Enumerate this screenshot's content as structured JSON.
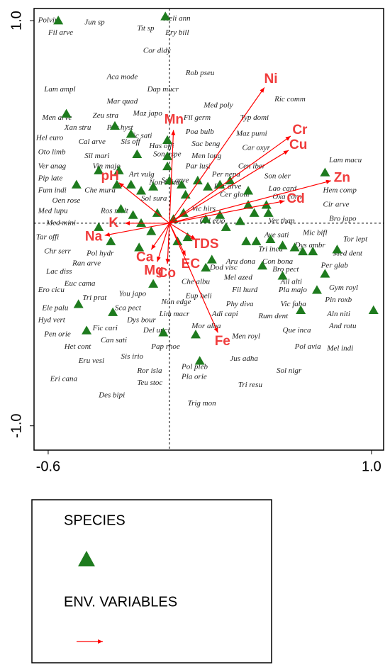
{
  "chart_data": {
    "type": "scatter",
    "xlim": [
      -0.67,
      1.06
    ],
    "ylim": [
      -1.12,
      1.06
    ],
    "xticks": [
      {
        "value": -0.6,
        "label": "-0.6"
      },
      {
        "value": 1.0,
        "label": "1.0"
      }
    ],
    "yticks": [
      {
        "value": -1.0,
        "label": "-1.0"
      },
      {
        "value": 1.0,
        "label": "1.0"
      }
    ],
    "zero_lines": true,
    "series": [
      {
        "name": "SPECIES",
        "color": "#1e7b1e",
        "marker": "triangle",
        "x": [
          -0.55,
          -0.02,
          -0.51,
          -0.27,
          -0.19,
          -0.16,
          -0.25,
          -0.01,
          -0.01,
          -0.01,
          -0.35,
          -0.46,
          -0.26,
          -0.19,
          -0.14,
          -0.08,
          0.0,
          0.06,
          0.08,
          0.14,
          0.19,
          0.25,
          0.3,
          0.39,
          0.48,
          0.42,
          0.49,
          0.35,
          0.28,
          0.38,
          0.43,
          0.5,
          0.56,
          0.62,
          0.66,
          0.71,
          0.83,
          0.77,
          0.73,
          0.65,
          1.01,
          -0.41,
          -0.28,
          -0.45,
          -0.35,
          -0.24,
          -0.18,
          -0.14,
          -0.09,
          -0.06,
          0.04,
          0.09,
          0.18,
          0.21,
          0.46,
          0.56,
          0.13,
          0.15,
          -0.03,
          -0.08,
          -0.15,
          0.77,
          0.39,
          0.18,
          0.25,
          -0.29,
          0.02,
          0.07
        ],
        "values": [
          1.0,
          1.02,
          0.54,
          0.48,
          0.44,
          0.34,
          0.26,
          0.41,
          0.33,
          0.28,
          0.26,
          0.19,
          0.19,
          0.19,
          0.16,
          0.18,
          0.21,
          0.19,
          0.14,
          0.21,
          0.18,
          0.19,
          0.21,
          0.16,
          0.09,
          0.05,
          0.05,
          0.01,
          -0.02,
          -0.09,
          -0.09,
          -0.08,
          -0.11,
          -0.12,
          -0.14,
          -0.14,
          -0.13,
          -0.25,
          -0.33,
          -0.43,
          -0.43,
          -0.53,
          -0.44,
          -0.4,
          -0.02,
          0.07,
          0.04,
          0.0,
          -0.04,
          0.05,
          -0.09,
          -0.07,
          -0.22,
          -0.18,
          -0.21,
          -0.26,
          -0.55,
          -0.68,
          -0.54,
          -0.3,
          -0.12,
          0.25,
          0.09,
          0.02,
          0.04,
          -0.09,
          0.02,
          0.05
        ]
      },
      {
        "name": "ENV. VARIABLES",
        "color": "#ff0000",
        "marker": "arrow",
        "labels": [
          "Ni",
          "Cr",
          "Cu",
          "Zn",
          "Cd",
          "Mn",
          "pH",
          "K",
          "Na",
          "Ca",
          "Mg",
          "Co",
          "EC",
          "TDS",
          "Fe"
        ],
        "x": [
          0.47,
          0.6,
          0.59,
          0.8,
          0.57,
          0.02,
          -0.25,
          -0.22,
          -0.32,
          -0.09,
          -0.06,
          -0.01,
          0.08,
          0.13,
          0.24
        ],
        "values": [
          0.67,
          0.43,
          0.36,
          0.21,
          0.11,
          0.46,
          0.2,
          0.0,
          -0.06,
          -0.13,
          -0.19,
          -0.2,
          -0.16,
          -0.08,
          -0.54
        ]
      }
    ],
    "species_labels": {
      "texts": [
        "Polviri",
        "Jun sp",
        "Fil arve",
        "Heli ann",
        "Tit sp",
        "Ery bill",
        "Cor didy",
        "Aca mode",
        "Rob pseu",
        "Lam ampl",
        "Dap mucr",
        "Ric comm",
        "Mar quad",
        "Med poly",
        "Maz japo",
        "Zeu stra",
        "Fil germ",
        "Typ domi",
        "Men arve",
        "Xan stru",
        "Par hyst",
        "Vic sati",
        "Poa bulb",
        "Maz pumi",
        "Hel euro",
        "Cal arve",
        "Sis off",
        "Has offi",
        "Sac beng",
        "Car oxyr",
        "Oto limb",
        "Sil mari",
        "Son aspe",
        "Men long",
        "Cen iber",
        "Ver anag",
        "Vin majo",
        "Par lusi",
        "Lam macu",
        "Pip late",
        "Art vulg",
        "Non cana",
        "Son arve",
        "Per nepa",
        "Son oler",
        "Lao card",
        "Hem comp",
        "Fum indi",
        "Che mura",
        "Ear arve",
        "Oxa corn",
        "Cir arve",
        "Oen rose",
        "Sol sura",
        "Cer glom",
        "Vic hirs",
        "Med lupu",
        "Ros mult",
        "Bro japo",
        "Med mini",
        "Ver thap",
        "Cel erio",
        "Tor lept",
        "Tar offi",
        "Ave sati",
        "Mic bifl",
        "Chr serr",
        "Pol hydr",
        "Tri inca",
        "Dys ambr",
        "Med dent",
        "Ran arve",
        "Aru dona",
        "Con bona",
        "Lac diss",
        "Euc cama",
        "Dod visc",
        "Bro pect",
        "Per glab",
        "Mel azed",
        "Ail alti",
        "Che albu",
        "Ero cicu",
        "You japo",
        "Tri prat",
        "Eup heli",
        "Fil hurd",
        "Pla majo",
        "Gym royl",
        "Pin roxb",
        "Ele palu",
        "Sca pect",
        "Non edge",
        "Phy diva",
        "Adi capi",
        "Vic faba",
        "Rum dent",
        "Aln niti",
        "Hyd vert",
        "Dys bour",
        "Lim macr",
        "Mor alba",
        "And rotu",
        "Fic cari",
        "Del unci",
        "Que inca",
        "Pen orie",
        "Can sati",
        "Men royl",
        "Pap rhoe",
        "Pol avia",
        "Het cont",
        "Jus adha",
        "Mel indi",
        "Sis irio",
        "Eru vesi",
        "Pol pleb",
        "Sol nigr",
        "Ror isla",
        "Eri cana",
        "Teu stoc",
        "Pla orie",
        "Tri resu",
        "Des bipi",
        "Trig mon"
      ],
      "x": [
        -0.65,
        -0.42,
        -0.6,
        -0.03,
        -0.16,
        -0.02,
        -0.13,
        -0.31,
        0.08,
        -0.62,
        -0.11,
        0.52,
        -0.31,
        0.17,
        -0.18,
        -0.38,
        0.07,
        0.35,
        -0.63,
        -0.52,
        -0.31,
        -0.2,
        0.08,
        0.33,
        -0.66,
        -0.45,
        -0.24,
        -0.1,
        0.11,
        0.36,
        -0.65,
        -0.42,
        -0.08,
        0.11,
        0.34,
        -0.65,
        -0.38,
        0.08,
        0.79,
        -0.65,
        -0.2,
        -0.1,
        -0.04,
        0.21,
        0.47,
        0.49,
        0.76,
        -0.65,
        -0.42,
        0.22,
        0.51,
        0.76,
        -0.58,
        -0.14,
        0.25,
        0.11,
        -0.65,
        -0.34,
        0.79,
        -0.61,
        0.49,
        0.15,
        0.86,
        -0.66,
        0.47,
        0.66,
        -0.62,
        -0.41,
        0.44,
        0.62,
        0.81,
        -0.48,
        0.28,
        0.46,
        -0.61,
        -0.52,
        0.2,
        0.51,
        0.75,
        0.27,
        0.55,
        0.06,
        -0.65,
        -0.25,
        -0.43,
        0.08,
        0.31,
        0.54,
        0.79,
        0.77,
        -0.63,
        -0.27,
        -0.04,
        0.28,
        0.21,
        0.55,
        0.44,
        0.78,
        -0.65,
        -0.21,
        -0.05,
        0.11,
        0.79,
        -0.38,
        -0.13,
        0.56,
        -0.62,
        -0.34,
        0.31,
        -0.09,
        0.62,
        -0.52,
        0.3,
        0.78,
        -0.24,
        -0.45,
        0.06,
        0.53,
        -0.16,
        -0.59,
        -0.16,
        0.06,
        0.34,
        -0.35,
        0.09
      ],
      "y": [
        1.0,
        0.99,
        0.94,
        1.01,
        0.96,
        0.94,
        0.85,
        0.72,
        0.74,
        0.66,
        0.66,
        0.61,
        0.6,
        0.58,
        0.54,
        0.53,
        0.52,
        0.52,
        0.52,
        0.47,
        0.47,
        0.43,
        0.45,
        0.44,
        0.42,
        0.4,
        0.4,
        0.38,
        0.39,
        0.37,
        0.35,
        0.33,
        0.34,
        0.33,
        0.28,
        0.28,
        0.28,
        0.28,
        0.31,
        0.22,
        0.24,
        0.2,
        0.21,
        0.24,
        0.23,
        0.17,
        0.16,
        0.16,
        0.16,
        0.18,
        0.13,
        0.09,
        0.11,
        0.12,
        0.14,
        0.07,
        0.06,
        0.06,
        0.02,
        0.0,
        0.01,
        0.01,
        -0.08,
        -0.07,
        -0.06,
        -0.05,
        -0.14,
        -0.15,
        -0.13,
        -0.11,
        -0.15,
        -0.2,
        -0.19,
        -0.19,
        -0.24,
        -0.3,
        -0.22,
        -0.23,
        -0.21,
        -0.27,
        -0.29,
        -0.29,
        -0.33,
        -0.35,
        -0.37,
        -0.36,
        -0.33,
        -0.33,
        -0.32,
        -0.38,
        -0.42,
        -0.42,
        -0.39,
        -0.4,
        -0.45,
        -0.4,
        -0.46,
        -0.45,
        -0.48,
        -0.48,
        -0.45,
        -0.51,
        -0.51,
        -0.52,
        -0.53,
        -0.53,
        -0.55,
        -0.58,
        -0.56,
        -0.61,
        -0.61,
        -0.61,
        -0.67,
        -0.62,
        -0.66,
        -0.68,
        -0.71,
        -0.73,
        -0.73,
        -0.77,
        -0.79,
        -0.76,
        -0.8,
        -0.85,
        -0.89
      ]
    }
  }
}
